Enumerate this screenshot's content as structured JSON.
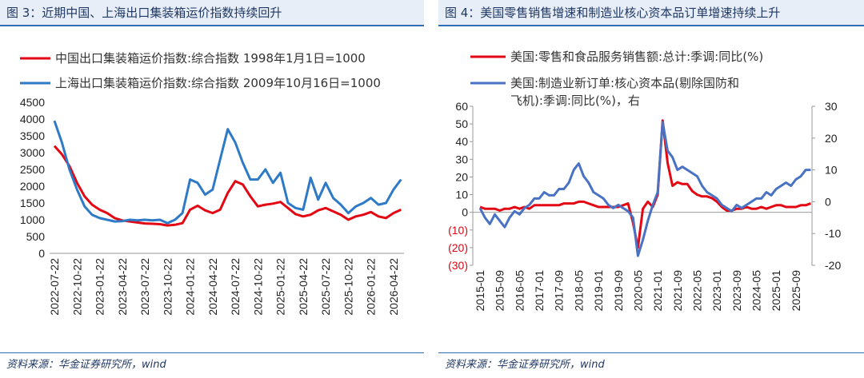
{
  "page": {
    "left_header": "图 3：近期中国、上海出口集装箱运价指数持续回升",
    "right_header": "图 4：美国零售销售增速和制造业核心资本品订单增速持续上升",
    "left_source": "资料来源：华金证券研究所，wind",
    "right_source": "资料来源：华金证券研究所，wind"
  },
  "chart_data": [
    {
      "type": "line",
      "categories": [
        "2022-07-22",
        null,
        null,
        "2022-10-22",
        null,
        null,
        "2023-01-22",
        null,
        null,
        "2023-04-22",
        null,
        null,
        "2023-07-22",
        null,
        null,
        "2023-10-22",
        null,
        null,
        "2024-01-22",
        null,
        null,
        "2024-04-22",
        null,
        null,
        "2024-07-22",
        null,
        null,
        "2024-10-22",
        null,
        null,
        "2025-01-22",
        null,
        null,
        "2025-04-22",
        null,
        null,
        "2025-07-22",
        null,
        null,
        "2025-10-22",
        null,
        null,
        "2026-01-22",
        null,
        null,
        "2026-04-22",
        null
      ],
      "series": [
        {
          "name": "中国出口集装箱运价指数:综合指数 1998年1月1日=1000",
          "color": "#e30613",
          "values": [
            3200,
            2950,
            2600,
            2100,
            1700,
            1450,
            1300,
            1200,
            1050,
            980,
            950,
            920,
            890,
            880,
            870,
            830,
            850,
            900,
            1300,
            1420,
            1280,
            1200,
            1300,
            1800,
            2150,
            2050,
            1700,
            1400,
            1450,
            1480,
            1530,
            1350,
            1170,
            1100,
            1150,
            1280,
            1350,
            1250,
            1150,
            1000,
            1100,
            1150,
            1230,
            1100,
            1050,
            1200,
            1300
          ]
        },
        {
          "name": "上海出口集装箱运价指数:综合指数 2009年10月16日=1000",
          "color": "#2f7ac6",
          "values": [
            3950,
            3300,
            2500,
            1900,
            1400,
            1150,
            1050,
            1000,
            950,
            960,
            1000,
            980,
            1000,
            980,
            1000,
            900,
            1000,
            1200,
            2200,
            2100,
            1750,
            1900,
            2800,
            3700,
            3300,
            2700,
            2200,
            2200,
            2500,
            2100,
            2400,
            1500,
            1350,
            1300,
            2250,
            1600,
            2100,
            1650,
            1450,
            1200,
            1400,
            1500,
            1650,
            1450,
            1500,
            1900,
            2200
          ]
        }
      ],
      "ylim": [
        0,
        4500
      ],
      "yticks": [
        0,
        500,
        1000,
        1500,
        2000,
        2500,
        3000,
        3500,
        4000,
        4500
      ]
    },
    {
      "type": "line",
      "categories": [
        "2015-01",
        null,
        null,
        null,
        "2015-09",
        null,
        null,
        null,
        "2016-05",
        null,
        null,
        null,
        "2017-01",
        null,
        null,
        null,
        "2017-09",
        null,
        null,
        null,
        "2018-05",
        null,
        null,
        null,
        "2019-01",
        null,
        null,
        null,
        "2019-09",
        null,
        null,
        null,
        "2020-05",
        null,
        null,
        null,
        "2021-01",
        null,
        null,
        null,
        "2021-09",
        null,
        null,
        null,
        "2022-05",
        null,
        null,
        null,
        "2023-01",
        null,
        null,
        null,
        "2023-09",
        null,
        null,
        null,
        "2024-05",
        null,
        null,
        null,
        "2025-01",
        null,
        null,
        null,
        "2025-09",
        null,
        null,
        null
      ],
      "series": [
        {
          "name": "美国:零售和食品服务销售额:总计:季调:同比(%)",
          "color": "#e30613",
          "values": [
            3,
            2,
            2,
            2,
            1,
            2,
            2,
            3,
            2,
            3,
            2,
            4,
            4,
            4,
            4,
            4,
            4,
            5,
            5,
            5,
            6,
            6,
            5,
            4,
            3,
            3,
            3,
            3,
            3,
            4,
            5,
            -6,
            -20,
            2,
            6,
            3,
            10,
            52,
            28,
            15,
            17,
            16,
            16,
            12,
            10,
            9,
            9,
            8,
            6,
            3,
            1,
            1,
            2,
            2,
            3,
            2,
            2,
            3,
            2,
            3,
            4,
            4,
            3,
            3,
            3,
            4,
            4,
            5
          ]
        },
        {
          "name": "美国:制造业新订单:核心资本品(剔除国防和飞机):季调:同比(%)，右",
          "color": "#4a72c4",
          "axis": "y2",
          "values": [
            -2,
            -5,
            -7,
            -4,
            -6,
            -8,
            -5,
            -3,
            -4,
            -2,
            -1,
            1,
            1,
            3,
            2,
            2,
            4,
            4,
            6,
            10,
            12,
            8,
            6,
            3,
            2,
            1,
            -1,
            -2,
            -1,
            -2,
            -3,
            -5,
            -17,
            -12,
            -6,
            -1,
            3,
            25,
            16,
            14,
            10,
            11,
            10,
            9,
            8,
            5,
            3,
            2,
            1,
            -1,
            -2,
            -3,
            -1,
            -2,
            -1,
            0,
            1,
            1,
            3,
            2,
            4,
            5,
            6,
            5,
            7,
            8,
            10,
            10
          ]
        }
      ],
      "ylim": [
        -30,
        60
      ],
      "yticks": [
        {
          "value": -30,
          "label": "(30)"
        },
        {
          "value": -20,
          "label": "(20)"
        },
        {
          "value": -10,
          "label": "(10)"
        },
        0,
        10,
        20,
        30,
        40,
        50,
        60
      ],
      "negative_tick_color": "#e30613",
      "y2lim": [
        -20,
        30
      ],
      "y2ticks": [
        -20,
        -10,
        0,
        10,
        20,
        30
      ]
    }
  ]
}
